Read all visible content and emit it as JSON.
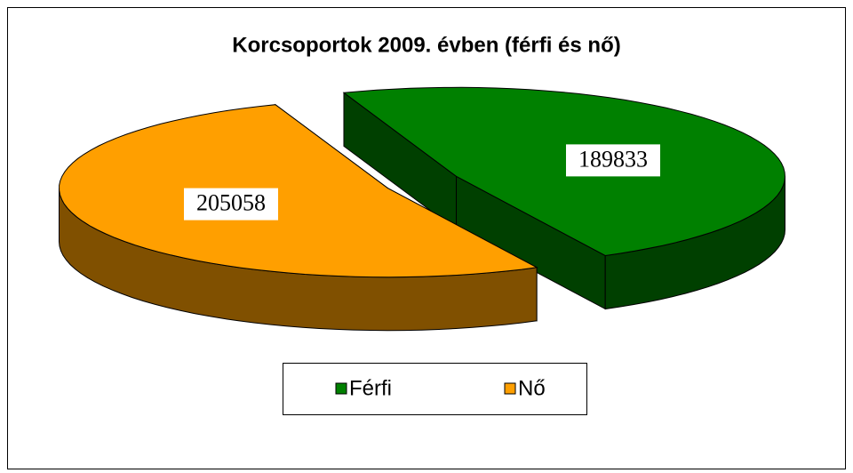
{
  "chart_data": {
    "type": "pie",
    "title": "Korcsoportok 2009. évben (férfi és nő)",
    "categories": [
      "Férfi",
      "Nő"
    ],
    "values": [
      189833,
      205058
    ],
    "colors": [
      "#008000",
      "#ff9f00"
    ],
    "legend": "bottom"
  }
}
